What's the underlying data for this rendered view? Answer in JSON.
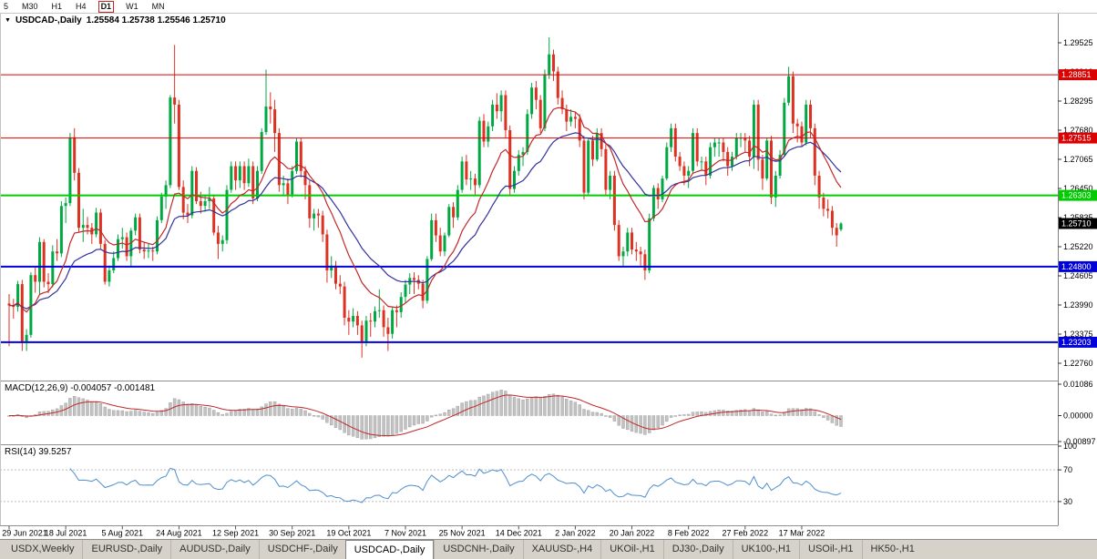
{
  "toolbar": {
    "buttons": [
      "5",
      "M30",
      "H1",
      "H4",
      "D1",
      "W1",
      "MN"
    ],
    "active": "D1"
  },
  "chart_data": {
    "type": "candlestick",
    "title": "USDCAD-,Daily",
    "ohlc_text": "1.25584 1.25738 1.25546 1.25710",
    "y_axis": {
      "ticks": [
        "1.29525",
        "1.28910",
        "1.28295",
        "1.27680",
        "1.27065",
        "1.26450",
        "1.25835",
        "1.25220",
        "1.24605",
        "1.23990",
        "1.23375",
        "1.22760"
      ]
    },
    "x_axis": {
      "labels": [
        "29 Jun 2021",
        "18 Jul 2021",
        "5 Aug 2021",
        "24 Aug 2021",
        "12 Sep 2021",
        "30 Sep 2021",
        "19 Oct 2021",
        "7 Nov 2021",
        "25 Nov 2021",
        "14 Dec 2021",
        "2 Jan 2022",
        "20 Jan 2022",
        "8 Feb 2022",
        "27 Feb 2022",
        "17 Mar 2022"
      ],
      "indices": [
        0,
        13,
        26,
        39,
        52,
        65,
        78,
        91,
        104,
        117,
        130,
        143,
        156,
        169,
        182
      ]
    },
    "hlines": [
      {
        "price": 1.28851,
        "label": "1.28851",
        "color": "#dd0000",
        "width": 1
      },
      {
        "price": 1.27515,
        "label": "1.27515",
        "color": "#dd0000",
        "width": 1
      },
      {
        "price": 1.26303,
        "label": "1.26303",
        "color": "#00cc00",
        "width": 2
      },
      {
        "price": 1.248,
        "label": "1.24800",
        "color": "#0000dd",
        "width": 2
      },
      {
        "price": 1.23203,
        "label": "1.23203",
        "color": "#0000dd",
        "width": 2
      }
    ],
    "current_price": {
      "value": 1.2571,
      "label": "1.25710",
      "bg": "#000000"
    },
    "colors": {
      "up": "#00a843",
      "down": "#dd3222",
      "ma_fast": "#c22828",
      "ma_slow": "#31319c",
      "macd_hist": "#c2c2c2",
      "macd_hist_stroke": "#9b9b9b",
      "macd_signal": "#c22828",
      "rsi": "#4f8fce"
    },
    "overlays": [
      {
        "type": "ema",
        "period": 13
      },
      {
        "type": "ema",
        "period": 26
      }
    ],
    "candles": [
      [
        1.2402,
        1.2422,
        1.2312,
        1.2398
      ],
      [
        1.2398,
        1.2412,
        1.237,
        1.2395
      ],
      [
        1.2395,
        1.245,
        1.2385,
        1.2443
      ],
      [
        1.2443,
        1.2452,
        1.2302,
        1.2322
      ],
      [
        1.2322,
        1.2348,
        1.2302,
        1.2336
      ],
      [
        1.2336,
        1.2468,
        1.233,
        1.2462
      ],
      [
        1.2462,
        1.2478,
        1.2425,
        1.2448
      ],
      [
        1.2448,
        1.2542,
        1.2422,
        1.2532
      ],
      [
        1.2532,
        1.2538,
        1.2436,
        1.2448
      ],
      [
        1.2448,
        1.2466,
        1.2424,
        1.2443
      ],
      [
        1.2443,
        1.2525,
        1.2436,
        1.2512
      ],
      [
        1.2512,
        1.2538,
        1.2492,
        1.2508
      ],
      [
        1.2508,
        1.2618,
        1.25,
        1.2608
      ],
      [
        1.2608,
        1.2626,
        1.2572,
        1.2614
      ],
      [
        1.2614,
        1.2762,
        1.2608,
        1.2753
      ],
      [
        1.2753,
        1.2772,
        1.2662,
        1.2678
      ],
      [
        1.2678,
        1.2688,
        1.2552,
        1.2562
      ],
      [
        1.2562,
        1.2602,
        1.2532,
        1.2568
      ],
      [
        1.2568,
        1.2585,
        1.2548,
        1.2562
      ],
      [
        1.2562,
        1.2572,
        1.2528,
        1.2548
      ],
      [
        1.2548,
        1.2604,
        1.2542,
        1.2594
      ],
      [
        1.2594,
        1.2602,
        1.2518,
        1.2528
      ],
      [
        1.2528,
        1.2536,
        1.2442,
        1.2448
      ],
      [
        1.2448,
        1.2482,
        1.2438,
        1.2472
      ],
      [
        1.2472,
        1.2512,
        1.2466,
        1.2498
      ],
      [
        1.2498,
        1.2548,
        1.2492,
        1.2538
      ],
      [
        1.2538,
        1.2562,
        1.2518,
        1.2542
      ],
      [
        1.2542,
        1.2552,
        1.2492,
        1.2502
      ],
      [
        1.2502,
        1.2562,
        1.2478,
        1.2556
      ],
      [
        1.2556,
        1.2592,
        1.2546,
        1.2584
      ],
      [
        1.2584,
        1.2592,
        1.2508,
        1.2516
      ],
      [
        1.2516,
        1.2532,
        1.2496,
        1.2512
      ],
      [
        1.2512,
        1.2528,
        1.2498,
        1.2514
      ],
      [
        1.2514,
        1.2522,
        1.2492,
        1.2512
      ],
      [
        1.2512,
        1.2586,
        1.2506,
        1.2578
      ],
      [
        1.2578,
        1.2636,
        1.2572,
        1.2628
      ],
      [
        1.2628,
        1.2662,
        1.2602,
        1.2652
      ],
      [
        1.2652,
        1.2842,
        1.2646,
        1.2837
      ],
      [
        1.2837,
        1.2948,
        1.2782,
        1.2822
      ],
      [
        1.2822,
        1.2832,
        1.2642,
        1.2648
      ],
      [
        1.2648,
        1.2662,
        1.258,
        1.2594
      ],
      [
        1.2594,
        1.2612,
        1.2572,
        1.2588
      ],
      [
        1.2588,
        1.2692,
        1.2582,
        1.2682
      ],
      [
        1.2682,
        1.269,
        1.2612,
        1.2618
      ],
      [
        1.2618,
        1.2638,
        1.2592,
        1.2608
      ],
      [
        1.2608,
        1.2632,
        1.2596,
        1.2618
      ],
      [
        1.2618,
        1.2648,
        1.2602,
        1.2624
      ],
      [
        1.2624,
        1.2632,
        1.2546,
        1.2552
      ],
      [
        1.2552,
        1.2566,
        1.2496,
        1.2528
      ],
      [
        1.2528,
        1.2546,
        1.2512,
        1.2536
      ],
      [
        1.2536,
        1.2652,
        1.2528,
        1.2642
      ],
      [
        1.2642,
        1.2702,
        1.2636,
        1.2692
      ],
      [
        1.2692,
        1.2702,
        1.2642,
        1.2662
      ],
      [
        1.2662,
        1.2702,
        1.2646,
        1.2692
      ],
      [
        1.2692,
        1.2702,
        1.2642,
        1.2656
      ],
      [
        1.2656,
        1.2708,
        1.2648,
        1.2692
      ],
      [
        1.2692,
        1.2702,
        1.2612,
        1.2624
      ],
      [
        1.2624,
        1.2692,
        1.2618,
        1.2682
      ],
      [
        1.2682,
        1.2772,
        1.2676,
        1.2764
      ],
      [
        1.2764,
        1.2896,
        1.2758,
        1.2818
      ],
      [
        1.2818,
        1.2848,
        1.2782,
        1.2812
      ],
      [
        1.2812,
        1.2832,
        1.2722,
        1.2762
      ],
      [
        1.2762,
        1.2772,
        1.2638,
        1.2652
      ],
      [
        1.2652,
        1.2672,
        1.2632,
        1.2656
      ],
      [
        1.2656,
        1.2666,
        1.2612,
        1.2632
      ],
      [
        1.2632,
        1.2692,
        1.2626,
        1.2682
      ],
      [
        1.2682,
        1.2752,
        1.2676,
        1.2744
      ],
      [
        1.2744,
        1.2752,
        1.2668,
        1.2682
      ],
      [
        1.2682,
        1.2692,
        1.2622,
        1.2652
      ],
      [
        1.2652,
        1.2662,
        1.2562,
        1.2582
      ],
      [
        1.2582,
        1.2602,
        1.2556,
        1.2592
      ],
      [
        1.2592,
        1.2602,
        1.2562,
        1.2588
      ],
      [
        1.2588,
        1.2598,
        1.2532,
        1.2548
      ],
      [
        1.2548,
        1.2558,
        1.2446,
        1.2472
      ],
      [
        1.2472,
        1.2502,
        1.2456,
        1.2482
      ],
      [
        1.2482,
        1.2492,
        1.2432,
        1.2444
      ],
      [
        1.2444,
        1.2462,
        1.2422,
        1.2438
      ],
      [
        1.2438,
        1.2448,
        1.2356,
        1.2372
      ],
      [
        1.2372,
        1.2388,
        1.2336,
        1.2364
      ],
      [
        1.2364,
        1.2392,
        1.2352,
        1.2376
      ],
      [
        1.2376,
        1.2386,
        1.2336,
        1.2356
      ],
      [
        1.2356,
        1.2366,
        1.2288,
        1.2322
      ],
      [
        1.2322,
        1.2376,
        1.2312,
        1.2366
      ],
      [
        1.2366,
        1.2382,
        1.2332,
        1.2364
      ],
      [
        1.2364,
        1.2396,
        1.2352,
        1.2386
      ],
      [
        1.2386,
        1.2432,
        1.2372,
        1.2388
      ],
      [
        1.2388,
        1.2398,
        1.2332,
        1.2352
      ],
      [
        1.2352,
        1.2372,
        1.2302,
        1.2338
      ],
      [
        1.2338,
        1.2396,
        1.2328,
        1.2388
      ],
      [
        1.2388,
        1.2398,
        1.2352,
        1.2384
      ],
      [
        1.2384,
        1.2426,
        1.2372,
        1.2416
      ],
      [
        1.2416,
        1.2452,
        1.2402,
        1.2442
      ],
      [
        1.2442,
        1.2466,
        1.2422,
        1.2456
      ],
      [
        1.2456,
        1.2468,
        1.2422,
        1.2452
      ],
      [
        1.2452,
        1.2462,
        1.2432,
        1.2444
      ],
      [
        1.2444,
        1.2452,
        1.2392,
        1.2408
      ],
      [
        1.2408,
        1.2502,
        1.2402,
        1.2496
      ],
      [
        1.2496,
        1.2592,
        1.2492,
        1.2578
      ],
      [
        1.2578,
        1.2592,
        1.2532,
        1.2546
      ],
      [
        1.2546,
        1.2562,
        1.2502,
        1.2512
      ],
      [
        1.2512,
        1.2552,
        1.2502,
        1.2546
      ],
      [
        1.2546,
        1.2612,
        1.2542,
        1.2606
      ],
      [
        1.2606,
        1.2616,
        1.2562,
        1.2584
      ],
      [
        1.2584,
        1.2652,
        1.2578,
        1.2642
      ],
      [
        1.2642,
        1.2712,
        1.2636,
        1.2702
      ],
      [
        1.2702,
        1.2716,
        1.2652,
        1.2664
      ],
      [
        1.2664,
        1.2682,
        1.2642,
        1.2666
      ],
      [
        1.2666,
        1.2676,
        1.2632,
        1.2652
      ],
      [
        1.2652,
        1.2796,
        1.2646,
        1.2788
      ],
      [
        1.2788,
        1.2802,
        1.2732,
        1.2744
      ],
      [
        1.2744,
        1.2786,
        1.2732,
        1.2776
      ],
      [
        1.2776,
        1.2832,
        1.2766,
        1.2822
      ],
      [
        1.2822,
        1.2846,
        1.2792,
        1.2808
      ],
      [
        1.2808,
        1.2852,
        1.2786,
        1.2842
      ],
      [
        1.2842,
        1.2852,
        1.2752,
        1.2768
      ],
      [
        1.2768,
        1.2778,
        1.2632,
        1.2644
      ],
      [
        1.2644,
        1.2692,
        1.2636,
        1.2682
      ],
      [
        1.2682,
        1.2726,
        1.2672,
        1.2716
      ],
      [
        1.2716,
        1.2732,
        1.2692,
        1.2722
      ],
      [
        1.2722,
        1.2812,
        1.2716,
        1.2802
      ],
      [
        1.2802,
        1.2868,
        1.2792,
        1.2858
      ],
      [
        1.2858,
        1.2872,
        1.2812,
        1.2832
      ],
      [
        1.2832,
        1.2842,
        1.2762,
        1.2772
      ],
      [
        1.2772,
        1.2896,
        1.2766,
        1.2886
      ],
      [
        1.2886,
        1.2964,
        1.2876,
        1.2928
      ],
      [
        1.2928,
        1.2938,
        1.2872,
        1.2892
      ],
      [
        1.2892,
        1.2902,
        1.2822,
        1.2836
      ],
      [
        1.2836,
        1.2852,
        1.2802,
        1.2812
      ],
      [
        1.2812,
        1.2822,
        1.2766,
        1.2786
      ],
      [
        1.2786,
        1.2812,
        1.2776,
        1.2796
      ],
      [
        1.2796,
        1.2806,
        1.2772,
        1.2792
      ],
      [
        1.2792,
        1.2802,
        1.2732,
        1.2746
      ],
      [
        1.2746,
        1.2756,
        1.2622,
        1.2636
      ],
      [
        1.2636,
        1.2752,
        1.2632,
        1.2746
      ],
      [
        1.2746,
        1.2756,
        1.2692,
        1.2706
      ],
      [
        1.2706,
        1.2772,
        1.2702,
        1.2762
      ],
      [
        1.2762,
        1.2772,
        1.2712,
        1.2728
      ],
      [
        1.2728,
        1.2738,
        1.2632,
        1.2642
      ],
      [
        1.2642,
        1.2682,
        1.2622,
        1.2672
      ],
      [
        1.2672,
        1.2682,
        1.2556,
        1.2568
      ],
      [
        1.2568,
        1.2578,
        1.2492,
        1.2502
      ],
      [
        1.2502,
        1.2522,
        1.2482,
        1.2512
      ],
      [
        1.2512,
        1.2562,
        1.2502,
        1.2552
      ],
      [
        1.2552,
        1.2562,
        1.2506,
        1.2516
      ],
      [
        1.2516,
        1.2532,
        1.2492,
        1.2512
      ],
      [
        1.2512,
        1.2522,
        1.2482,
        1.2506
      ],
      [
        1.2506,
        1.2516,
        1.2452,
        1.2472
      ],
      [
        1.2472,
        1.2592,
        1.2466,
        1.2582
      ],
      [
        1.2582,
        1.2652,
        1.2576,
        1.2646
      ],
      [
        1.2646,
        1.2656,
        1.2602,
        1.2622
      ],
      [
        1.2622,
        1.2672,
        1.2616,
        1.2666
      ],
      [
        1.2666,
        1.2742,
        1.2662,
        1.2732
      ],
      [
        1.2732,
        1.2782,
        1.2722,
        1.2772
      ],
      [
        1.2772,
        1.2782,
        1.2702,
        1.2712
      ],
      [
        1.2712,
        1.2722,
        1.2682,
        1.2692
      ],
      [
        1.2692,
        1.2702,
        1.2652,
        1.2672
      ],
      [
        1.2672,
        1.2692,
        1.2646,
        1.2682
      ],
      [
        1.2682,
        1.2772,
        1.2676,
        1.2762
      ],
      [
        1.2762,
        1.2772,
        1.2692,
        1.2702
      ],
      [
        1.2702,
        1.2712,
        1.2682,
        1.2702
      ],
      [
        1.2702,
        1.2712,
        1.2652,
        1.2672
      ],
      [
        1.2672,
        1.2742,
        1.2666,
        1.2732
      ],
      [
        1.2732,
        1.2752,
        1.2712,
        1.2742
      ],
      [
        1.2742,
        1.2752,
        1.2712,
        1.2742
      ],
      [
        1.2742,
        1.2752,
        1.2702,
        1.2722
      ],
      [
        1.2722,
        1.2732,
        1.2672,
        1.2692
      ],
      [
        1.2692,
        1.2722,
        1.2682,
        1.2712
      ],
      [
        1.2712,
        1.2762,
        1.2706,
        1.2752
      ],
      [
        1.2752,
        1.2762,
        1.2732,
        1.2752
      ],
      [
        1.2752,
        1.2762,
        1.2722,
        1.2746
      ],
      [
        1.2746,
        1.2756,
        1.2692,
        1.2712
      ],
      [
        1.2712,
        1.2832,
        1.2686,
        1.2822
      ],
      [
        1.2822,
        1.2832,
        1.2682,
        1.2706
      ],
      [
        1.2706,
        1.2716,
        1.2642,
        1.2666
      ],
      [
        1.2666,
        1.2752,
        1.2662,
        1.2746
      ],
      [
        1.2746,
        1.2756,
        1.2612,
        1.2626
      ],
      [
        1.2626,
        1.2682,
        1.2606,
        1.2672
      ],
      [
        1.2672,
        1.2726,
        1.2666,
        1.2716
      ],
      [
        1.2716,
        1.2836,
        1.2712,
        1.2826
      ],
      [
        1.2826,
        1.2902,
        1.282,
        1.2882
      ],
      [
        1.2882,
        1.2892,
        1.2762,
        1.2782
      ],
      [
        1.2782,
        1.2792,
        1.2742,
        1.2776
      ],
      [
        1.2776,
        1.2786,
        1.2732,
        1.2742
      ],
      [
        1.2742,
        1.2832,
        1.2736,
        1.2822
      ],
      [
        1.2822,
        1.2832,
        1.2752,
        1.2772
      ],
      [
        1.2772,
        1.2782,
        1.2652,
        1.2672
      ],
      [
        1.2672,
        1.2682,
        1.2602,
        1.2626
      ],
      [
        1.2626,
        1.2636,
        1.2586,
        1.2602
      ],
      [
        1.2602,
        1.2622,
        1.2582,
        1.2598
      ],
      [
        1.2598,
        1.2608,
        1.2546,
        1.2562
      ],
      [
        1.2562,
        1.2572,
        1.2522,
        1.2546
      ],
      [
        1.25584,
        1.25738,
        1.25546,
        1.2571
      ]
    ]
  },
  "indicators": {
    "macd": {
      "label": "MACD(12,26,9) -0.004057 -0.001481",
      "fast": 12,
      "slow": 26,
      "signal": 9,
      "axis": {
        "max": 0.01086,
        "min": -0.00897,
        "ticks": [
          {
            "v": 0.01086,
            "t": "0.01086"
          },
          {
            "v": 0,
            "t": "0.00000"
          },
          {
            "v": -0.00897,
            "t": "-0.00897"
          }
        ]
      }
    },
    "rsi": {
      "label": "RSI(14) 39.5257",
      "period": 14,
      "levels": [
        70,
        30
      ],
      "axis_ticks": [
        {
          "v": 100,
          "t": "100"
        },
        {
          "v": 70,
          "t": "70"
        },
        {
          "v": 30,
          "t": "30"
        }
      ]
    }
  },
  "tabs": {
    "active_index": 4,
    "items": [
      "USDX,Weekly",
      "EURUSD-,Daily",
      "AUDUSD-,Daily",
      "USDCHF-,Daily",
      "USDCAD-,Daily",
      "USDCNH-,Daily",
      "XAUUSD-,H4",
      "UKOil-,H1",
      "DJ30-,Daily",
      "UK100-,H1",
      "USOil-,H1",
      "HK50-,H1"
    ]
  }
}
